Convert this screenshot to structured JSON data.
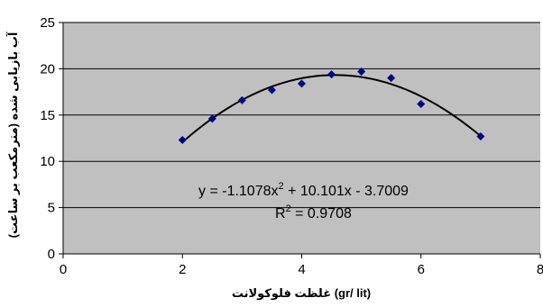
{
  "chart_data": {
    "type": "scatter",
    "title": "",
    "xlabel": "غلظت فلوکولانت (gr/ lit)",
    "ylabel": "آب بازیابی شده (مترمکعب بر ساعت)",
    "xlim": [
      0,
      8
    ],
    "ylim": [
      0,
      25
    ],
    "x_ticks": [
      0,
      2,
      4,
      6,
      8
    ],
    "y_ticks": [
      0,
      5,
      10,
      15,
      20,
      25
    ],
    "grid": {
      "horizontal": true,
      "vertical": false
    },
    "legend": "none",
    "colors": {
      "plot_background": "#c0c0c0",
      "gridline": "#000000",
      "marker": "#000080",
      "trendline": "#000000"
    },
    "series": [
      {
        "marker": "diamond",
        "points": [
          {
            "x": 2.0,
            "y": 12.3
          },
          {
            "x": 2.5,
            "y": 14.6
          },
          {
            "x": 3.0,
            "y": 16.6
          },
          {
            "x": 3.5,
            "y": 17.7
          },
          {
            "x": 4.0,
            "y": 18.4
          },
          {
            "x": 4.5,
            "y": 19.4
          },
          {
            "x": 5.0,
            "y": 19.7
          },
          {
            "x": 5.5,
            "y": 19.0
          },
          {
            "x": 6.0,
            "y": 16.2
          },
          {
            "x": 7.0,
            "y": 12.7
          }
        ]
      }
    ],
    "trendline": {
      "type": "polynomial",
      "order": 2,
      "coefficients": [
        -1.1078,
        10.101,
        -3.7009
      ],
      "x_range": [
        2,
        7
      ]
    },
    "annotations": {
      "equation_main": "y = -1.1078x",
      "equation_exp": "2",
      "equation_rest": " + 10.101x - 3.7009",
      "r2_prefix": "R",
      "r2_exp": "2",
      "r2_rest": " = 0.9708"
    }
  }
}
